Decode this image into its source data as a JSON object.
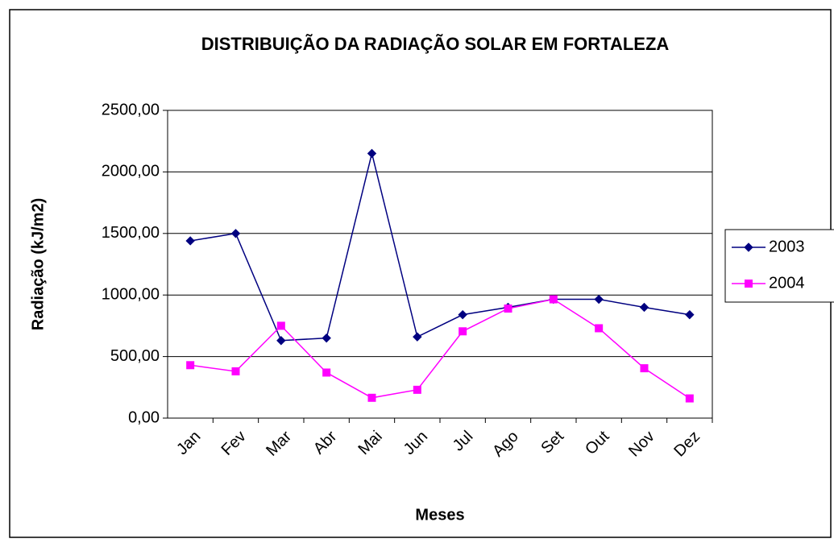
{
  "chart_data": {
    "type": "line",
    "title": "DISTRIBUIÇÃO DA RADIAÇÃO SOLAR EM FORTALEZA",
    "xlabel": "Meses",
    "ylabel": "Radiação (kJ/m2)",
    "categories": [
      "Jan",
      "Fev",
      "Mar",
      "Abr",
      "Mai",
      "Jun",
      "Jul",
      "Ago",
      "Set",
      "Out",
      "Nov",
      "Dez"
    ],
    "series": [
      {
        "name": "2003",
        "color": "#000080",
        "marker": "diamond",
        "values": [
          1440,
          1500,
          630,
          650,
          2150,
          660,
          840,
          900,
          965,
          965,
          900,
          840
        ]
      },
      {
        "name": "2004",
        "color": "#FF00FF",
        "marker": "square",
        "values": [
          430,
          380,
          750,
          370,
          165,
          230,
          705,
          890,
          965,
          730,
          405,
          160
        ]
      }
    ],
    "ylim": [
      0,
      2500
    ],
    "yticks": [
      {
        "value": 0,
        "label": "0,00"
      },
      {
        "value": 500,
        "label": "500,00"
      },
      {
        "value": 1000,
        "label": "1000,00"
      },
      {
        "value": 1500,
        "label": "1500,00"
      },
      {
        "value": 2000,
        "label": "2000,00"
      },
      {
        "value": 2500,
        "label": "2500,00"
      }
    ],
    "grid": true,
    "legend": "right"
  }
}
